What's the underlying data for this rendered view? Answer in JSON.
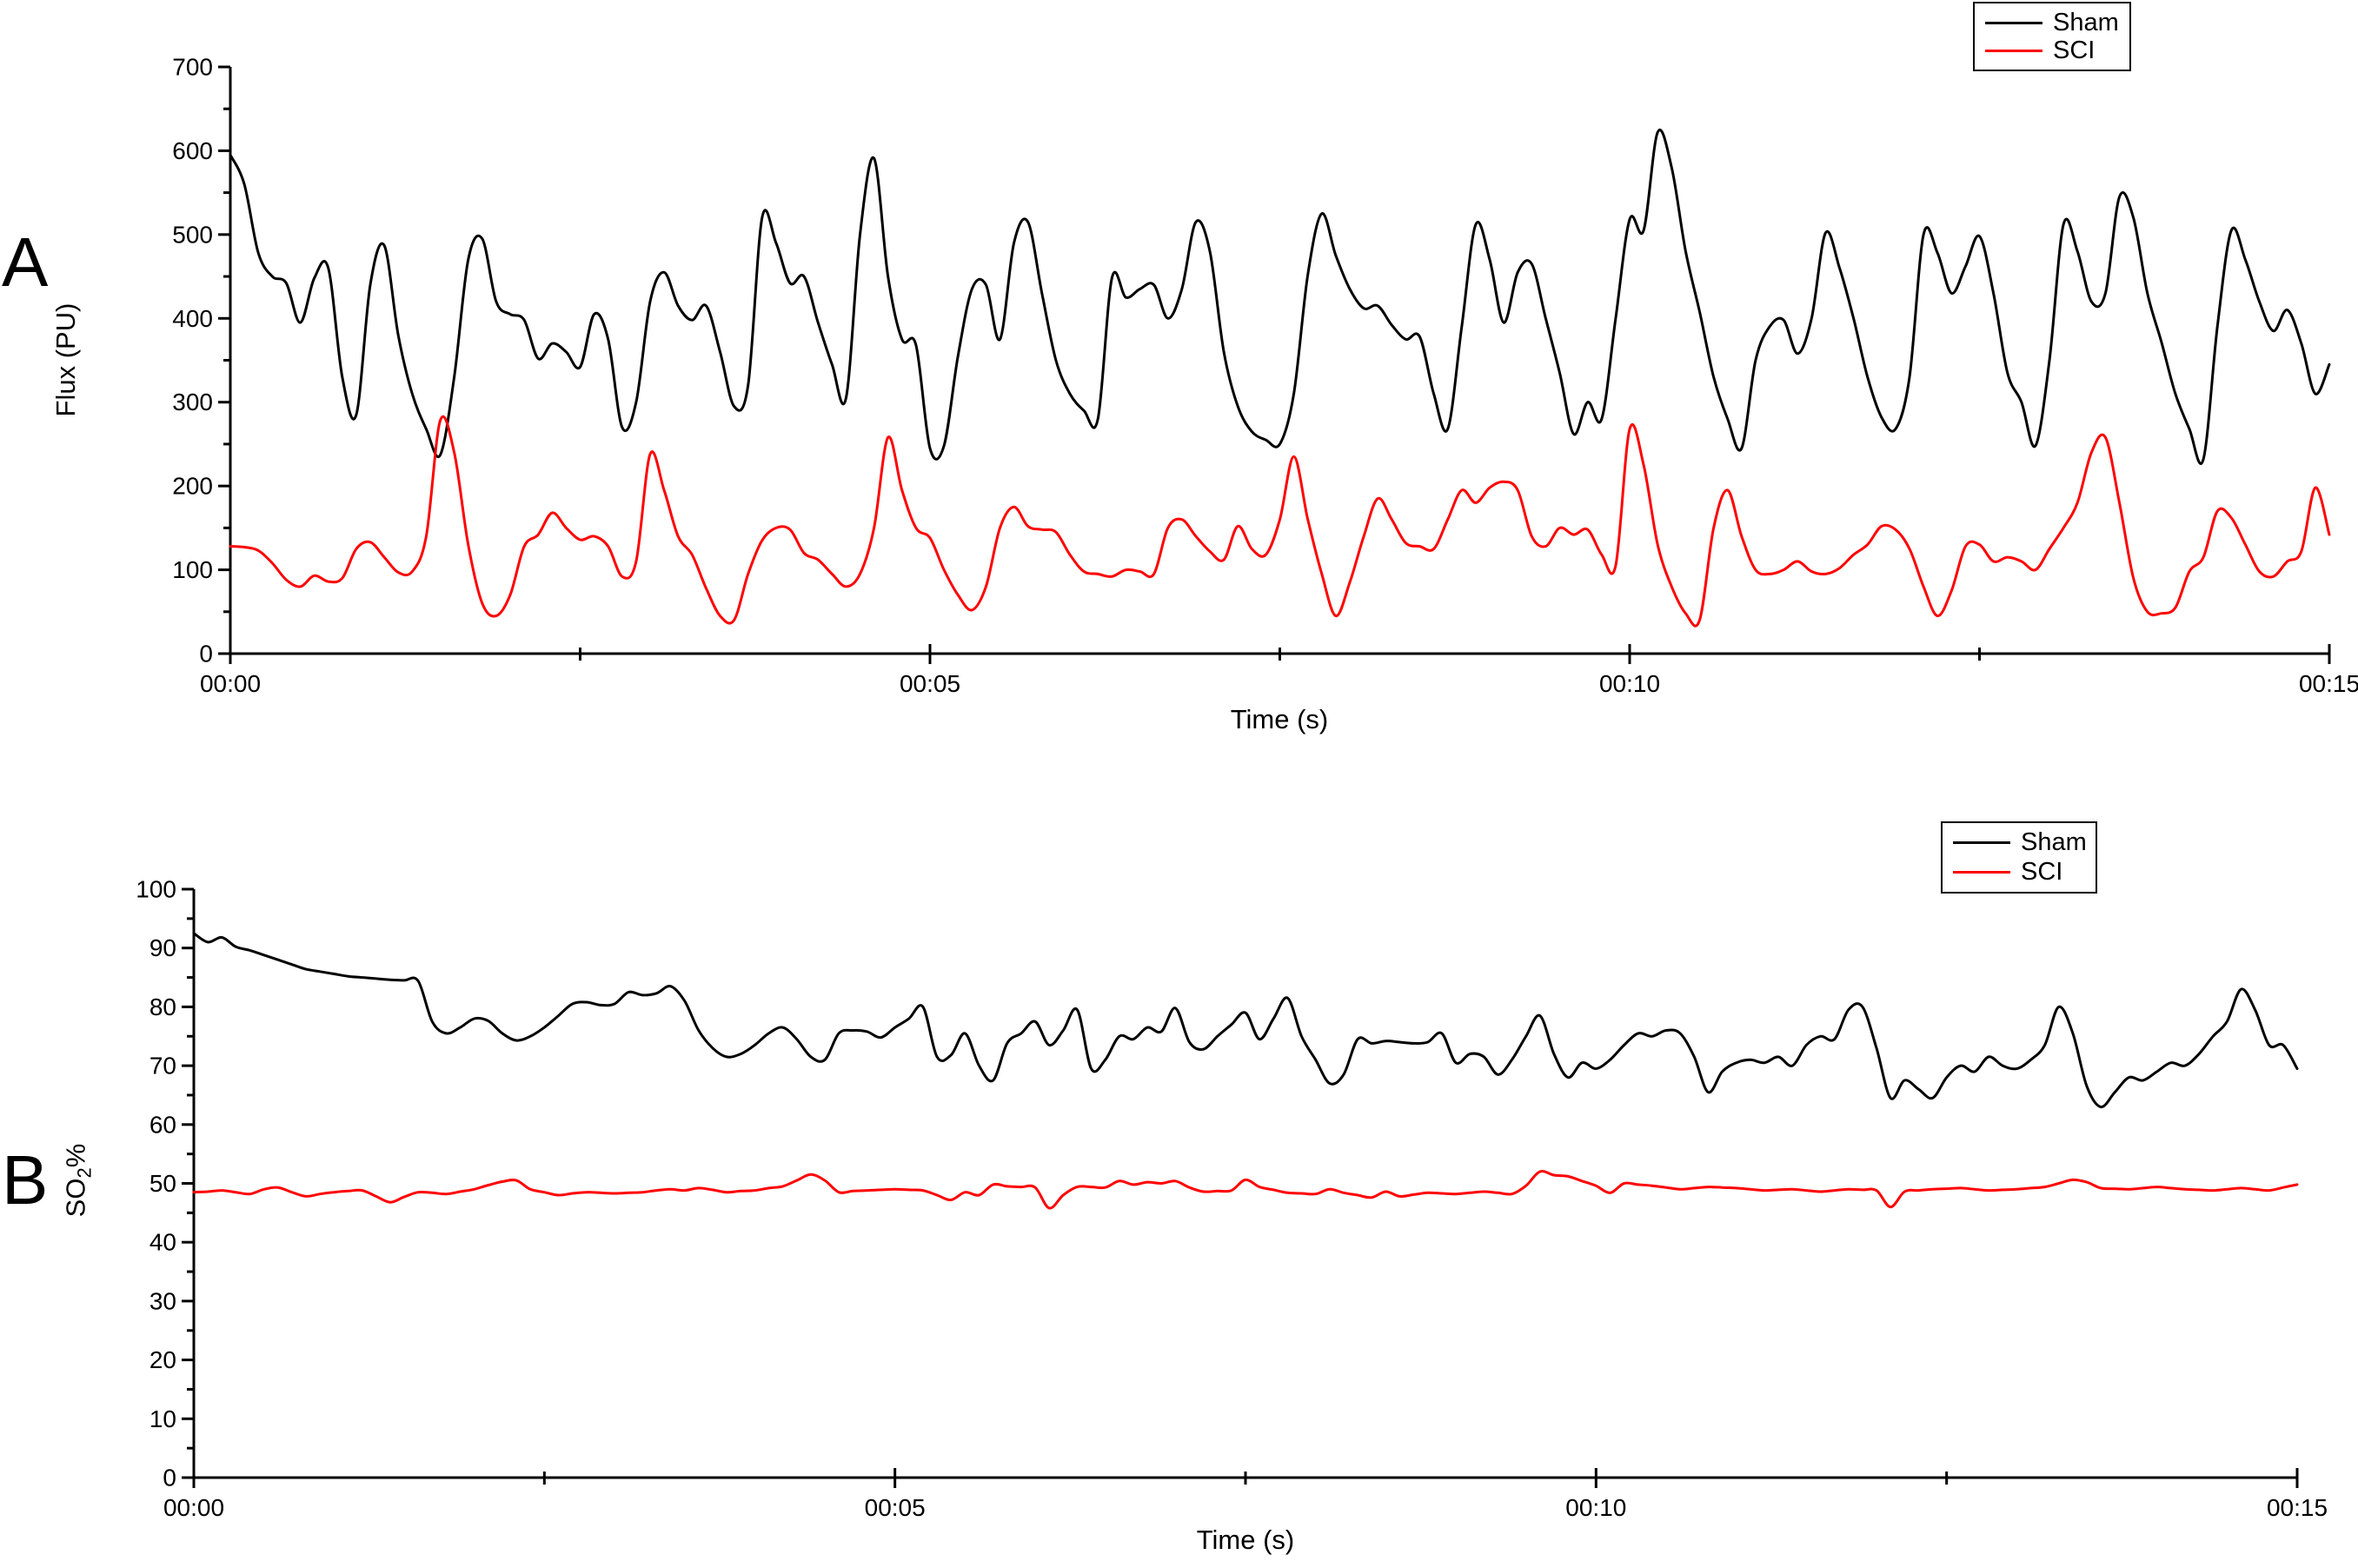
{
  "figure": {
    "background": "#ffffff",
    "panels": [
      {
        "panel_label": "A",
        "ylabel": "Flux (PU)",
        "xlabel": "Time (s)",
        "legend": [
          {
            "label": "Sham",
            "color": "#000000"
          },
          {
            "label": "SCI",
            "color": "#ff0000"
          }
        ]
      },
      {
        "panel_label": "B",
        "ylabel_base": "SO",
        "ylabel_sub": "2",
        "ylabel_suffix": "%",
        "xlabel": "Time (s)",
        "legend": [
          {
            "label": "Sham",
            "color": "#000000"
          },
          {
            "label": "SCI",
            "color": "#ff0000"
          }
        ]
      }
    ]
  },
  "chart_data": [
    {
      "type": "line",
      "title": "",
      "xlabel": "Time (s)",
      "ylabel": "Flux (PU)",
      "xlim": [
        0,
        15
      ],
      "ylim": [
        0,
        700
      ],
      "grid": false,
      "legend_position": "top-right",
      "x_tick_labels": [
        {
          "t": 0,
          "label": "00:00"
        },
        {
          "t": 5,
          "label": "00:05"
        },
        {
          "t": 10,
          "label": "00:10"
        },
        {
          "t": 15,
          "label": "00:15"
        }
      ],
      "x_minor_ticks": [
        2.5,
        7.5,
        12.5
      ],
      "y_major_step": 100,
      "y_minor_step": 50,
      "x_start": 0,
      "x_step": 0.1,
      "series": [
        {
          "name": "Sham",
          "color": "#000000",
          "values": [
            595,
            560,
            478,
            450,
            442,
            395,
            448,
            460,
            330,
            285,
            440,
            487,
            380,
            310,
            268,
            237,
            330,
            470,
            495,
            420,
            405,
            398,
            352,
            370,
            360,
            342,
            405,
            375,
            270,
            300,
            420,
            455,
            415,
            398,
            415,
            360,
            295,
            320,
            520,
            490,
            442,
            450,
            395,
            345,
            305,
            500,
            591,
            450,
            375,
            368,
            245,
            248,
            355,
            435,
            440,
            375,
            490,
            515,
            430,
            350,
            310,
            290,
            280,
            448,
            425,
            435,
            440,
            400,
            435,
            515,
            480,
            360,
            295,
            265,
            255,
            250,
            310,
            452,
            525,
            475,
            435,
            412,
            415,
            392,
            375,
            378,
            310,
            268,
            390,
            512,
            470,
            395,
            455,
            465,
            400,
            335,
            262,
            300,
            280,
            400,
            518,
            505,
            622,
            580,
            480,
            408,
            330,
            280,
            245,
            350,
            390,
            398,
            358,
            400,
            502,
            460,
            400,
            330,
            282,
            268,
            330,
            500,
            478,
            430,
            462,
            498,
            430,
            335,
            300,
            248,
            350,
            512,
            480,
            420,
            430,
            545,
            520,
            430,
            372,
            310,
            268,
            232,
            390,
            505,
            470,
            420,
            385,
            410,
            370,
            310,
            345
          ]
        },
        {
          "name": "SCI",
          "color": "#ff0000",
          "values": [
            128,
            127,
            123,
            108,
            88,
            80,
            93,
            86,
            90,
            125,
            133,
            115,
            97,
            98,
            140,
            278,
            240,
            130,
            60,
            45,
            70,
            128,
            142,
            168,
            150,
            136,
            140,
            128,
            92,
            110,
            238,
            195,
            140,
            118,
            78,
            45,
            40,
            95,
            135,
            150,
            148,
            120,
            112,
            95,
            80,
            95,
            150,
            258,
            195,
            150,
            138,
            100,
            70,
            52,
            80,
            150,
            175,
            152,
            148,
            145,
            118,
            98,
            95,
            92,
            100,
            98,
            95,
            150,
            160,
            140,
            122,
            112,
            152,
            125,
            118,
            160,
            235,
            160,
            95,
            45,
            85,
            140,
            185,
            160,
            132,
            128,
            125,
            160,
            195,
            180,
            198,
            205,
            195,
            140,
            128,
            150,
            142,
            148,
            118,
            105,
            268,
            225,
            130,
            80,
            48,
            40,
            150,
            195,
            140,
            100,
            95,
            100,
            110,
            98,
            95,
            102,
            118,
            130,
            152,
            148,
            125,
            80,
            45,
            75,
            128,
            130,
            110,
            115,
            110,
            100,
            125,
            150,
            180,
            240,
            258,
            180,
            90,
            50,
            48,
            55,
            98,
            115,
            170,
            162,
            130,
            98,
            92,
            110,
            122,
            198,
            142
          ]
        }
      ]
    },
    {
      "type": "line",
      "title": "",
      "xlabel": "Time (s)",
      "ylabel": "SO2%",
      "xlim": [
        0,
        15
      ],
      "ylim": [
        0,
        100
      ],
      "grid": false,
      "legend_position": "top-right",
      "x_tick_labels": [
        {
          "t": 0,
          "label": "00:00"
        },
        {
          "t": 5,
          "label": "00:05"
        },
        {
          "t": 10,
          "label": "00:10"
        },
        {
          "t": 15,
          "label": "00:15"
        }
      ],
      "x_minor_ticks": [
        2.5,
        7.5,
        12.5
      ],
      "y_major_step": 10,
      "y_minor_step": 5,
      "x_start": 0,
      "x_step": 0.1,
      "series": [
        {
          "name": "Sham",
          "color": "#000000",
          "values": [
            92.5,
            91.0,
            91.8,
            90.2,
            89.6,
            88.8,
            88.0,
            87.2,
            86.4,
            86.0,
            85.6,
            85.2,
            85.0,
            84.8,
            84.6,
            84.5,
            84.4,
            77.5,
            75.5,
            76.5,
            78.0,
            77.6,
            75.5,
            74.3,
            75.0,
            76.5,
            78.5,
            80.5,
            80.8,
            80.3,
            80.5,
            82.5,
            82.0,
            82.3,
            83.5,
            81.0,
            76.0,
            73.0,
            71.5,
            72.0,
            73.5,
            75.5,
            76.5,
            74.5,
            71.5,
            71.0,
            75.5,
            76.0,
            75.8,
            74.8,
            76.5,
            78.0,
            80.0,
            71.5,
            71.8,
            75.5,
            70.0,
            67.5,
            73.8,
            75.5,
            77.5,
            73.5,
            76.0,
            79.5,
            69.5,
            71.0,
            75.0,
            74.5,
            76.5,
            75.8,
            79.8,
            74.0,
            72.8,
            75.0,
            77.0,
            79.0,
            74.5,
            78.0,
            81.5,
            75.0,
            71.0,
            67.0,
            68.5,
            74.5,
            73.8,
            74.2,
            74.0,
            73.8,
            74.0,
            75.5,
            70.5,
            72.0,
            71.5,
            68.5,
            71.0,
            75.0,
            78.5,
            72.0,
            68.0,
            70.5,
            69.5,
            71.0,
            73.5,
            75.5,
            75.0,
            76.0,
            75.5,
            71.5,
            65.5,
            69.0,
            70.5,
            71.0,
            70.5,
            71.5,
            70.0,
            73.5,
            75.0,
            74.5,
            79.5,
            80.0,
            73.0,
            64.5,
            67.5,
            66.0,
            64.5,
            68.0,
            70.0,
            69.0,
            71.5,
            70.0,
            69.5,
            71.0,
            73.5,
            80.0,
            75.5,
            66.5,
            63.0,
            65.5,
            68.0,
            67.5,
            69.0,
            70.5,
            70.0,
            72.0,
            75.0,
            77.5,
            83.0,
            79.5,
            73.5,
            73.5,
            69.5
          ]
        },
        {
          "name": "SCI",
          "color": "#ff0000",
          "values": [
            48.5,
            48.6,
            48.8,
            48.5,
            48.2,
            49.0,
            49.3,
            48.5,
            47.8,
            48.2,
            48.5,
            48.7,
            48.8,
            47.8,
            46.8,
            47.7,
            48.5,
            48.4,
            48.2,
            48.6,
            49.0,
            49.7,
            50.3,
            50.5,
            49.0,
            48.5,
            48.0,
            48.3,
            48.5,
            48.4,
            48.3,
            48.4,
            48.5,
            48.8,
            49.0,
            48.8,
            49.2,
            48.9,
            48.5,
            48.7,
            48.8,
            49.2,
            49.5,
            50.5,
            51.5,
            50.5,
            48.5,
            48.7,
            48.8,
            48.9,
            49.0,
            48.9,
            48.8,
            48.0,
            47.2,
            48.5,
            48.0,
            49.8,
            49.5,
            49.4,
            49.3,
            45.8,
            48.0,
            49.4,
            49.4,
            49.3,
            50.4,
            49.8,
            50.2,
            50.0,
            50.4,
            49.3,
            48.6,
            48.7,
            48.8,
            50.6,
            49.4,
            48.9,
            48.4,
            48.3,
            48.2,
            49.0,
            48.4,
            48.0,
            47.6,
            48.6,
            47.8,
            48.1,
            48.4,
            48.3,
            48.2,
            48.4,
            48.6,
            48.4,
            48.2,
            49.6,
            52.0,
            51.4,
            51.2,
            50.4,
            49.6,
            48.4,
            50.0,
            49.8,
            49.6,
            49.3,
            49.0,
            49.2,
            49.4,
            49.3,
            49.2,
            49.0,
            48.8,
            48.9,
            49.0,
            48.8,
            48.6,
            48.8,
            49.0,
            48.9,
            48.8,
            46.0,
            48.6,
            48.8,
            49.0,
            49.1,
            49.2,
            49.0,
            48.8,
            48.9,
            49.0,
            49.2,
            49.4,
            50.0,
            50.6,
            50.2,
            49.2,
            49.1,
            49.0,
            49.2,
            49.4,
            49.2,
            49.0,
            48.9,
            48.8,
            49.0,
            49.2,
            49.0,
            48.8,
            49.3,
            49.8
          ]
        }
      ]
    }
  ]
}
